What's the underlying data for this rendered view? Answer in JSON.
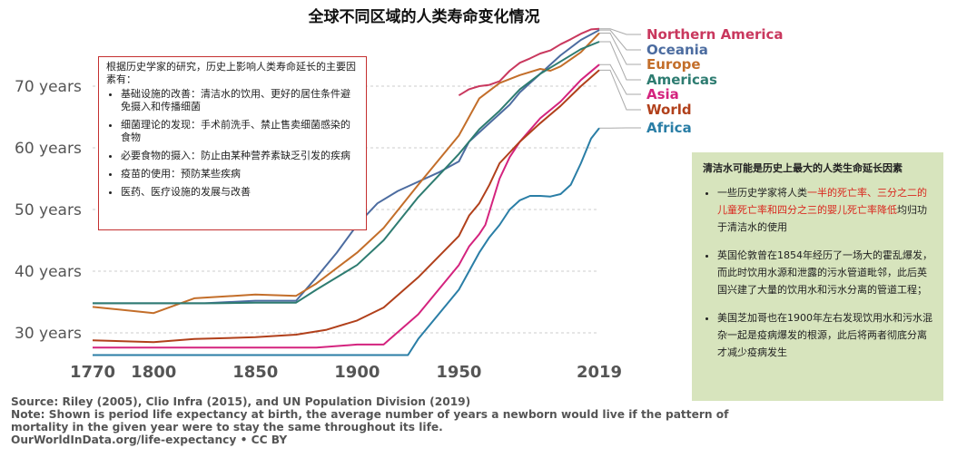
{
  "chart_data": {
    "type": "line",
    "title": "全球不同区域的人类寿命变化情况",
    "xlabel": "",
    "ylabel": "",
    "xlim": [
      1770,
      2019
    ],
    "ylim": [
      26,
      80
    ],
    "x_ticks": [
      1770,
      1800,
      1850,
      1900,
      1950,
      2019
    ],
    "y_ticks": [
      {
        "value": 30,
        "label": "30 years"
      },
      {
        "value": 40,
        "label": "40 years"
      },
      {
        "value": 50,
        "label": "50 years"
      },
      {
        "value": 60,
        "label": "60 years"
      },
      {
        "value": 70,
        "label": "70 years"
      }
    ],
    "series": [
      {
        "name": "Northern America",
        "color": "#c9385e",
        "points": [
          [
            1950,
            68.5
          ],
          [
            1955,
            69.5
          ],
          [
            1960,
            70
          ],
          [
            1965,
            70.2
          ],
          [
            1970,
            70.8
          ],
          [
            1975,
            72.5
          ],
          [
            1980,
            73.8
          ],
          [
            1985,
            74.5
          ],
          [
            1990,
            75.3
          ],
          [
            1995,
            75.8
          ],
          [
            2000,
            76.8
          ],
          [
            2005,
            77.6
          ],
          [
            2010,
            78.5
          ],
          [
            2015,
            79.2
          ],
          [
            2019,
            79.3
          ]
        ]
      },
      {
        "name": "Oceania",
        "color": "#4c6ca0",
        "points": [
          [
            1770,
            34.8
          ],
          [
            1800,
            34.8
          ],
          [
            1825,
            34.8
          ],
          [
            1850,
            35.2
          ],
          [
            1870,
            35.2
          ],
          [
            1880,
            39
          ],
          [
            1890,
            43
          ],
          [
            1900,
            47.5
          ],
          [
            1910,
            51
          ],
          [
            1920,
            53
          ],
          [
            1930,
            54.5
          ],
          [
            1940,
            56
          ],
          [
            1950,
            57.8
          ],
          [
            1955,
            61
          ],
          [
            1960,
            62.5
          ],
          [
            1965,
            64
          ],
          [
            1970,
            65.5
          ],
          [
            1975,
            67
          ],
          [
            1980,
            69
          ],
          [
            1990,
            72
          ],
          [
            2000,
            75
          ],
          [
            2010,
            77.5
          ],
          [
            2019,
            79.1
          ]
        ]
      },
      {
        "name": "Europe",
        "color": "#c36e2a",
        "points": [
          [
            1770,
            34.2
          ],
          [
            1800,
            33.2
          ],
          [
            1820,
            35.6
          ],
          [
            1850,
            36.2
          ],
          [
            1870,
            36
          ],
          [
            1880,
            38
          ],
          [
            1900,
            43
          ],
          [
            1913,
            47
          ],
          [
            1930,
            54
          ],
          [
            1950,
            62
          ],
          [
            1955,
            65
          ],
          [
            1960,
            68
          ],
          [
            1970,
            70.5
          ],
          [
            1980,
            71.8
          ],
          [
            1990,
            72.8
          ],
          [
            1995,
            72.5
          ],
          [
            2000,
            73.2
          ],
          [
            2010,
            75.5
          ],
          [
            2019,
            78.6
          ]
        ]
      },
      {
        "name": "Americas",
        "color": "#2e7c71",
        "points": [
          [
            1770,
            34.8
          ],
          [
            1800,
            34.8
          ],
          [
            1830,
            34.8
          ],
          [
            1850,
            34.9
          ],
          [
            1870,
            34.9
          ],
          [
            1880,
            37
          ],
          [
            1900,
            41
          ],
          [
            1913,
            45
          ],
          [
            1930,
            52
          ],
          [
            1950,
            59
          ],
          [
            1960,
            63
          ],
          [
            1970,
            66
          ],
          [
            1980,
            69.5
          ],
          [
            1990,
            72
          ],
          [
            2000,
            74
          ],
          [
            2010,
            76
          ],
          [
            2019,
            77.2
          ]
        ]
      },
      {
        "name": "Asia",
        "color": "#d4237e",
        "points": [
          [
            1770,
            27.6
          ],
          [
            1800,
            27.6
          ],
          [
            1850,
            27.6
          ],
          [
            1880,
            27.6
          ],
          [
            1900,
            28.1
          ],
          [
            1913,
            28.1
          ],
          [
            1930,
            33
          ],
          [
            1950,
            41
          ],
          [
            1955,
            44
          ],
          [
            1960,
            46
          ],
          [
            1963,
            47.5
          ],
          [
            1970,
            55
          ],
          [
            1975,
            58.5
          ],
          [
            1980,
            61
          ],
          [
            1990,
            64.8
          ],
          [
            2000,
            67.5
          ],
          [
            2010,
            71
          ],
          [
            2019,
            73.5
          ]
        ]
      },
      {
        "name": "World",
        "color": "#b1401b",
        "points": [
          [
            1770,
            28.8
          ],
          [
            1800,
            28.5
          ],
          [
            1820,
            29
          ],
          [
            1850,
            29.3
          ],
          [
            1870,
            29.7
          ],
          [
            1885,
            30.5
          ],
          [
            1900,
            32
          ],
          [
            1913,
            34.1
          ],
          [
            1930,
            39
          ],
          [
            1950,
            45.7
          ],
          [
            1955,
            49
          ],
          [
            1960,
            51
          ],
          [
            1965,
            54
          ],
          [
            1970,
            57.5
          ],
          [
            1980,
            61
          ],
          [
            1990,
            64
          ],
          [
            2000,
            66.8
          ],
          [
            2010,
            70
          ],
          [
            2019,
            72.6
          ]
        ]
      },
      {
        "name": "Africa",
        "color": "#2a7ea6",
        "points": [
          [
            1770,
            26.4
          ],
          [
            1800,
            26.4
          ],
          [
            1850,
            26.4
          ],
          [
            1900,
            26.4
          ],
          [
            1925,
            26.4
          ],
          [
            1930,
            29
          ],
          [
            1950,
            37
          ],
          [
            1955,
            40
          ],
          [
            1960,
            43
          ],
          [
            1965,
            45.5
          ],
          [
            1970,
            47.5
          ],
          [
            1975,
            50
          ],
          [
            1980,
            51.5
          ],
          [
            1985,
            52.2
          ],
          [
            1990,
            52.2
          ],
          [
            1995,
            52.1
          ],
          [
            2000,
            52.5
          ],
          [
            2005,
            54
          ],
          [
            2010,
            57.5
          ],
          [
            2015,
            61.5
          ],
          [
            2019,
            63.2
          ]
        ]
      }
    ],
    "legend_position": "right"
  },
  "source_lines": [
    "Source: Riley (2005), Clio Infra (2015), and UN Population Division (2019)",
    "Note: Shown is period life expectancy at birth, the average number of years a newborn would live if the pattern of mortality in the given year were to stay the same throughout its life.",
    "OurWorldInData.org/life-expectancy • CC BY"
  ],
  "factors_box": {
    "intro": "根据历史学家的研究，历史上影响人类寿命延长的主要因素有：",
    "items": [
      "基础设施的改善：清洁水的饮用、更好的居住条件避免摄入和传播细菌",
      "细菌理论的发现：手术前洗手、禁止售卖细菌感染的食物",
      "必要食物的摄入：防止由某种营养素缺乏引发的疾病",
      "疫苗的使用：预防某些疾病",
      "医药、医疗设施的发展与改善"
    ]
  },
  "water_box": {
    "title": "清洁水可能是历史上最大的人类生命延长因素",
    "item1_pre": "一些历史学家将人类",
    "item1_highlight": "一半的死亡率、三分之二的儿童死亡率和四分之三的婴儿死亡率降低",
    "item1_post": "均归功于清洁水的使用",
    "item2": "英国伦敦曾在1854年经历了一场大的霍乱爆发，而此时饮用水源和泄露的污水管道毗邻，此后英国兴建了大量的饮用水和污水分离的管道工程；",
    "item3": "美国芝加哥也在1900年左右发现饮用水和污水混杂一起是疫病爆发的根源，此后将两者彻底分离才减少疫病发生"
  }
}
